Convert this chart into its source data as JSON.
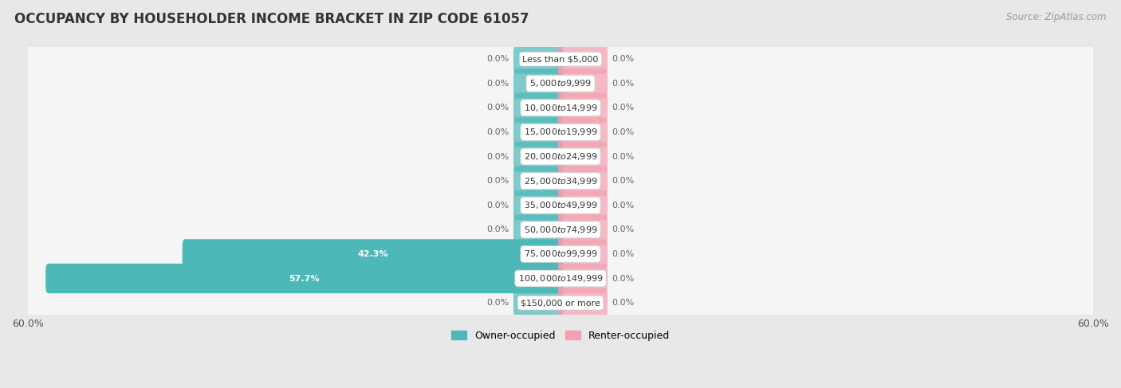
{
  "title": "OCCUPANCY BY HOUSEHOLDER INCOME BRACKET IN ZIP CODE 61057",
  "source": "Source: ZipAtlas.com",
  "categories": [
    "Less than $5,000",
    "$5,000 to $9,999",
    "$10,000 to $14,999",
    "$15,000 to $19,999",
    "$20,000 to $24,999",
    "$25,000 to $34,999",
    "$35,000 to $49,999",
    "$50,000 to $74,999",
    "$75,000 to $99,999",
    "$100,000 to $149,999",
    "$150,000 or more"
  ],
  "owner_values": [
    0.0,
    0.0,
    0.0,
    0.0,
    0.0,
    0.0,
    0.0,
    0.0,
    42.3,
    57.7,
    0.0
  ],
  "renter_values": [
    0.0,
    0.0,
    0.0,
    0.0,
    0.0,
    0.0,
    0.0,
    0.0,
    0.0,
    0.0,
    0.0
  ],
  "owner_color": "#4db8b8",
  "renter_color": "#f4a0b0",
  "axis_max": 60.0,
  "stub_size": 5.0,
  "background_color": "#e8e8e8",
  "row_color": "#f5f5f5",
  "row_shadow_color": "#d0d0d0",
  "title_fontsize": 12,
  "source_fontsize": 8.5,
  "tick_fontsize": 9,
  "bar_label_fontsize": 8,
  "category_fontsize": 8
}
